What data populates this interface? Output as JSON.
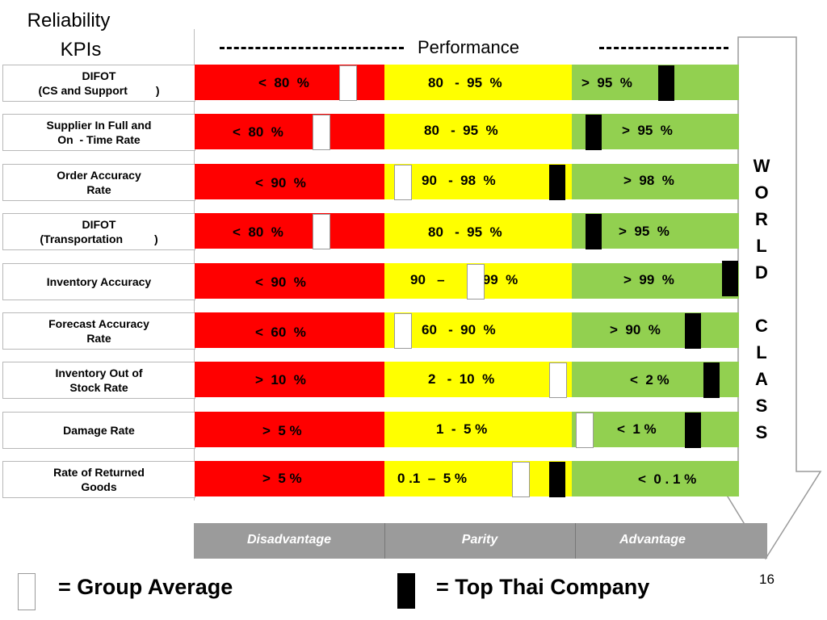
{
  "title": {
    "line1": "Reliability",
    "line2": "KPIs"
  },
  "header": {
    "performance": "Performance"
  },
  "rows": [
    {
      "label": "DIFOT\n(CS and Support         )",
      "red": "<  80  %",
      "yellow": "80   -  95  %",
      "green": ">  95  %"
    },
    {
      "label": "Supplier In Full and\nOn  - Time Rate",
      "red": "<  80  %",
      "yellow": "80   -  95  %",
      "green": ">  95  %"
    },
    {
      "label": "Order Accuracy\nRate",
      "red": "<  90  %",
      "yellow": "90   -  98  %",
      "green": ">  98  %"
    },
    {
      "label": "DIFOT\n(Transportation          )",
      "red": "<  80  %",
      "yellow": "80   -  95  %",
      "green": ">  95  %"
    },
    {
      "label": "Inventory Accuracy",
      "red": "<  90  %",
      "yellow": "90   –          99  %",
      "green": ">  99  %"
    },
    {
      "label": "Forecast Accuracy\nRate",
      "red": "<  60  %",
      "yellow": "60   -  90  %",
      "green": ">  90  %"
    },
    {
      "label": "Inventory Out of\nStock Rate",
      "red": ">  10  %",
      "yellow": "2   -  10  %",
      "green": "<  2 %"
    },
    {
      "label": "Damage Rate",
      "red": ">  5 %",
      "yellow": "1  -  5 %",
      "green": "<  1 %"
    },
    {
      "label": "Rate of Returned\nGoods",
      "red": ">  5 %",
      "yellow": "0 .1  –  5 %",
      "green": "<  0 . 1 %"
    }
  ],
  "world_class": [
    "W",
    "O",
    "R",
    "L",
    "D",
    "",
    "C",
    "L",
    "A",
    "S",
    "S"
  ],
  "footer": {
    "disadvantage": "Disadvantage",
    "parity": "Parity",
    "advantage": "Advantage"
  },
  "legend": {
    "group_average": "= Group Average",
    "top_thai": "= Top Thai Company"
  },
  "page_number": "16",
  "colors": {
    "red": "#ff0000",
    "yellow": "#ffff00",
    "green": "#92d050",
    "footer": "#9b9b9b"
  }
}
